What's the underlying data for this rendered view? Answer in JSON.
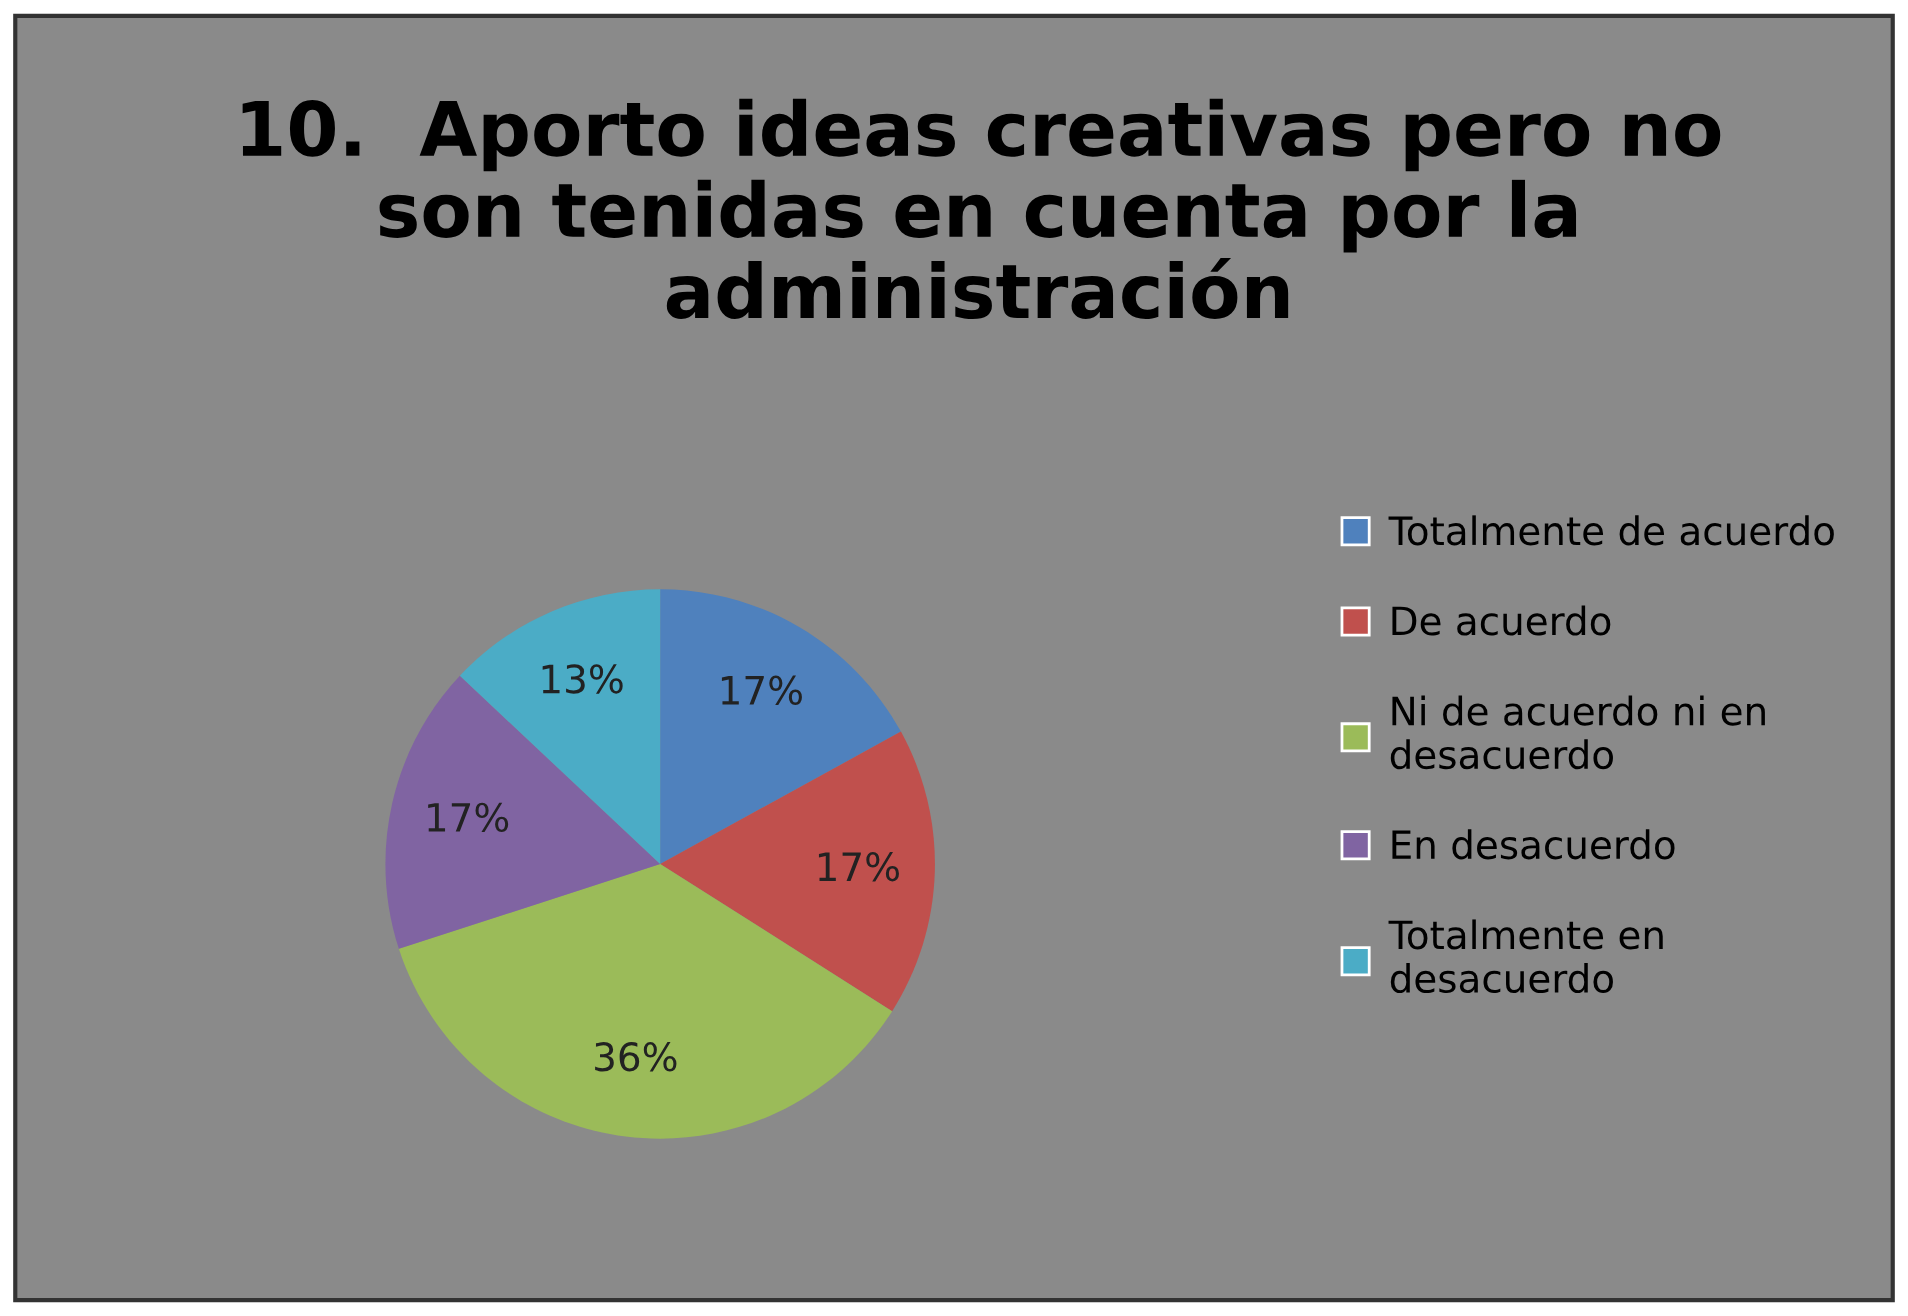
{
  "chart_data": {
    "type": "pie",
    "title": "10.  Aporto ideas creativas pero no\nson tenidas en cuenta por la\nadministración",
    "categories": [
      "Totalmente de acuerdo",
      "De acuerdo",
      "Ni de acuerdo ni en\ndesacuerdo",
      "En desacuerdo",
      "Totalmente en\ndesacuerdo"
    ],
    "values": [
      17,
      17,
      36,
      17,
      13
    ],
    "value_labels": [
      "17%",
      "17%",
      "36%",
      "17%",
      "13%"
    ],
    "colors": [
      "#4f81bd",
      "#c0504d",
      "#9bbb59",
      "#8064a2",
      "#4bacc6"
    ],
    "legend": "right"
  }
}
